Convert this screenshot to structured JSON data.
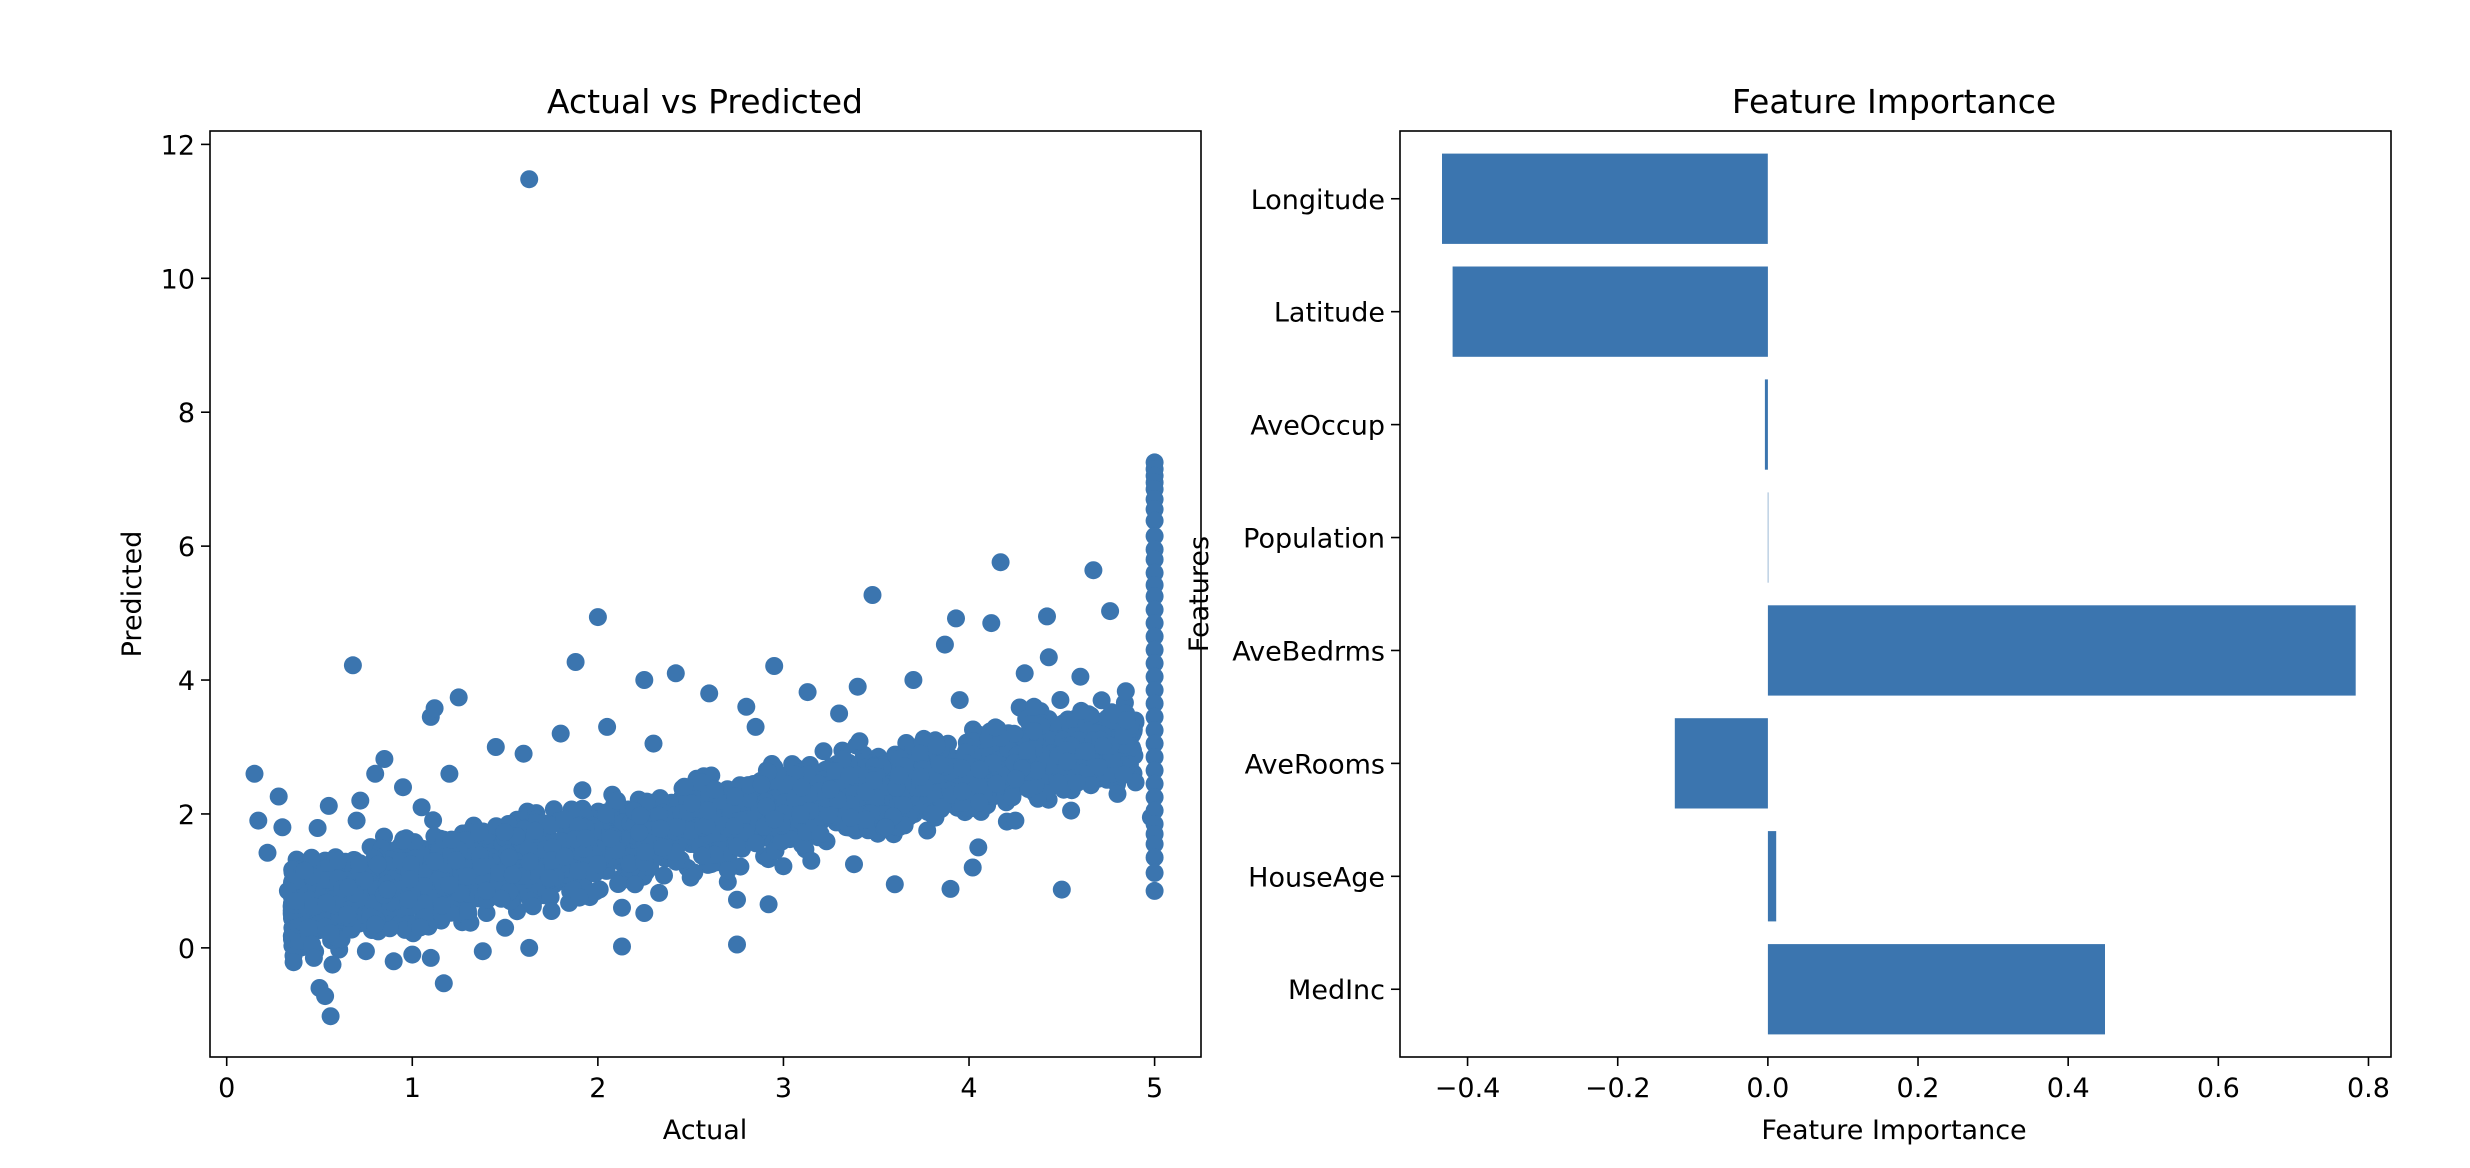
{
  "chart_data": [
    {
      "type": "scatter",
      "title": "Actual vs Predicted",
      "xlabel": "Actual",
      "ylabel": "Predicted",
      "xlim": [
        -0.09,
        5.25
      ],
      "ylim": [
        -1.63,
        12.2
      ],
      "xticks": [
        0,
        1,
        2,
        3,
        4,
        5
      ],
      "yticks": [
        0,
        2,
        4,
        6,
        8,
        10,
        12
      ],
      "color": "#3b75af",
      "series": [
        {
          "points": [
            [
              1.63,
              11.48
            ],
            [
              0.68,
              4.22
            ],
            [
              1.88,
              4.27
            ],
            [
              2.0,
              4.94
            ],
            [
              3.48,
              5.27
            ],
            [
              4.17,
              5.76
            ],
            [
              4.67,
              5.64
            ],
            [
              3.93,
              4.92
            ],
            [
              4.12,
              4.85
            ],
            [
              4.42,
              4.95
            ],
            [
              4.76,
              5.03
            ],
            [
              0.15,
              2.6
            ],
            [
              0.17,
              1.9
            ],
            [
              0.22,
              1.42
            ],
            [
              0.28,
              2.26
            ],
            [
              0.3,
              1.8
            ],
            [
              0.33,
              0.85
            ],
            [
              0.37,
              0.7
            ],
            [
              0.42,
              1.15
            ],
            [
              0.44,
              0.3
            ],
            [
              0.46,
              0.05
            ],
            [
              0.47,
              -0.15
            ],
            [
              0.49,
              1.79
            ],
            [
              0.5,
              -0.6
            ],
            [
              0.53,
              -0.72
            ],
            [
              0.55,
              2.12
            ],
            [
              0.56,
              -1.02
            ],
            [
              0.57,
              -0.25
            ],
            [
              0.6,
              1.3
            ],
            [
              0.65,
              0.5
            ],
            [
              0.72,
              2.2
            ],
            [
              0.75,
              -0.05
            ],
            [
              0.8,
              2.6
            ],
            [
              0.85,
              2.82
            ],
            [
              0.9,
              -0.2
            ],
            [
              0.95,
              1.6
            ],
            [
              1.0,
              -0.1
            ],
            [
              1.05,
              2.1
            ],
            [
              1.1,
              -0.15
            ],
            [
              1.1,
              3.45
            ],
            [
              1.12,
              3.58
            ],
            [
              1.17,
              -0.53
            ],
            [
              1.25,
              3.74
            ],
            [
              1.38,
              -0.05
            ],
            [
              1.5,
              0.3
            ],
            [
              1.63,
              0.0
            ],
            [
              1.75,
              0.55
            ],
            [
              1.9,
              0.75
            ],
            [
              2.13,
              0.02
            ],
            [
              2.13,
              0.6
            ],
            [
              2.25,
              0.52
            ],
            [
              2.25,
              4.0
            ],
            [
              2.42,
              4.1
            ],
            [
              2.75,
              0.05
            ],
            [
              2.75,
              0.72
            ],
            [
              2.92,
              0.65
            ],
            [
              2.95,
              4.21
            ],
            [
              3.13,
              3.82
            ],
            [
              3.15,
              1.3
            ],
            [
              3.38,
              1.25
            ],
            [
              3.6,
              0.95
            ],
            [
              3.9,
              0.88
            ],
            [
              4.02,
              1.2
            ],
            [
              4.5,
              0.87
            ],
            [
              3.87,
              4.53
            ],
            [
              4.43,
              4.34
            ],
            [
              4.05,
              1.5
            ],
            [
              4.25,
              1.9
            ],
            [
              4.55,
              2.05
            ],
            [
              4.8,
              2.3
            ],
            [
              4.98,
              1.95
            ],
            [
              3.0,
              1.22
            ],
            [
              2.7,
              1.16
            ],
            [
              2.5,
              1.05
            ],
            [
              2.2,
              0.95
            ],
            [
              1.65,
              0.62
            ],
            [
              1.3,
              0.55
            ],
            [
              2.6,
              3.8
            ],
            [
              2.8,
              3.6
            ],
            [
              3.4,
              3.9
            ],
            [
              3.7,
              4.0
            ],
            [
              4.3,
              4.1
            ],
            [
              4.6,
              4.05
            ],
            [
              1.8,
              3.2
            ],
            [
              2.05,
              3.3
            ],
            [
              1.45,
              3.0
            ],
            [
              0.95,
              2.4
            ],
            [
              3.2,
              1.7
            ],
            [
              3.55,
              1.8
            ],
            [
              3.8,
              2.0
            ],
            [
              4.15,
              2.45
            ],
            [
              4.7,
              2.7
            ],
            [
              2.35,
              1.5
            ],
            [
              2.0,
              1.25
            ],
            [
              1.4,
              0.85
            ],
            [
              0.8,
              0.35
            ],
            [
              0.7,
              1.9
            ],
            [
              1.2,
              2.6
            ],
            [
              1.6,
              2.9
            ],
            [
              2.3,
              3.05
            ],
            [
              2.85,
              3.3
            ],
            [
              3.3,
              3.5
            ],
            [
              3.95,
              3.7
            ],
            [
              4.35,
              3.6
            ],
            [
              4.85,
              3.4
            ]
          ],
          "capped": [
            7.25,
            7.15,
            7.05,
            6.95,
            6.85,
            6.7,
            6.55,
            6.38,
            6.15,
            5.95,
            5.8,
            5.6,
            5.42,
            5.25,
            5.05,
            4.85,
            4.65,
            4.45,
            4.25,
            4.05,
            3.85,
            3.65,
            3.45,
            3.25,
            3.05,
            2.85,
            2.65,
            2.45,
            2.25,
            2.05,
            1.85,
            1.7,
            1.55,
            1.35,
            1.12,
            0.85
          ]
        }
      ]
    },
    {
      "type": "bar",
      "orientation": "horizontal",
      "title": "Feature Importance",
      "xlabel": "Feature Importance",
      "ylabel": "Features",
      "categories": [
        "MedInc",
        "HouseAge",
        "AveRooms",
        "AveBedrms",
        "Population",
        "AveOccup",
        "Latitude",
        "Longitude"
      ],
      "values": [
        0.449,
        0.011,
        -0.124,
        0.783,
        -0.0001,
        -0.004,
        -0.42,
        -0.434
      ],
      "xlim": [
        -0.49,
        0.83
      ],
      "xticks": [
        -0.4,
        -0.2,
        0.0,
        0.2,
        0.4,
        0.6,
        0.8
      ],
      "xticklabels": [
        "−0.4",
        "−0.2",
        "0.0",
        "0.2",
        "0.4",
        "0.6",
        "0.8"
      ],
      "color": "#3b75af"
    }
  ]
}
